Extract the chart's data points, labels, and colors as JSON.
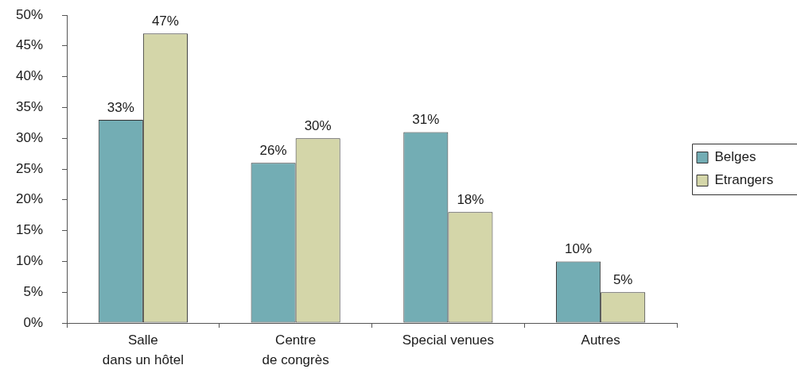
{
  "chart_data": {
    "type": "bar",
    "categories": [
      "Salle\ndans un hôtel",
      "Centre\nde congrès",
      "Special venues",
      "Autres"
    ],
    "series": [
      {
        "name": "Belges",
        "color": "#73adb4",
        "values": [
          33,
          26,
          31,
          10
        ],
        "value_labels": [
          "33%",
          "26%",
          "31%",
          "10%"
        ]
      },
      {
        "name": "Etrangers",
        "color": "#d4d6a9",
        "values": [
          47,
          30,
          18,
          5
        ],
        "value_labels": [
          "47%",
          "30%",
          "18%",
          "5%"
        ]
      }
    ],
    "ylim": [
      0,
      50
    ],
    "yticks": [
      {
        "value": 0,
        "label": "0%"
      },
      {
        "value": 5,
        "label": "5%"
      },
      {
        "value": 10,
        "label": "10%"
      },
      {
        "value": 15,
        "label": "15%"
      },
      {
        "value": 20,
        "label": "20%"
      },
      {
        "value": 25,
        "label": "25%"
      },
      {
        "value": 30,
        "label": "30%"
      },
      {
        "value": 35,
        "label": "35%"
      },
      {
        "value": 40,
        "label": "40%"
      },
      {
        "value": 45,
        "label": "45%"
      },
      {
        "value": 50,
        "label": "50%"
      }
    ],
    "legend": "right"
  }
}
